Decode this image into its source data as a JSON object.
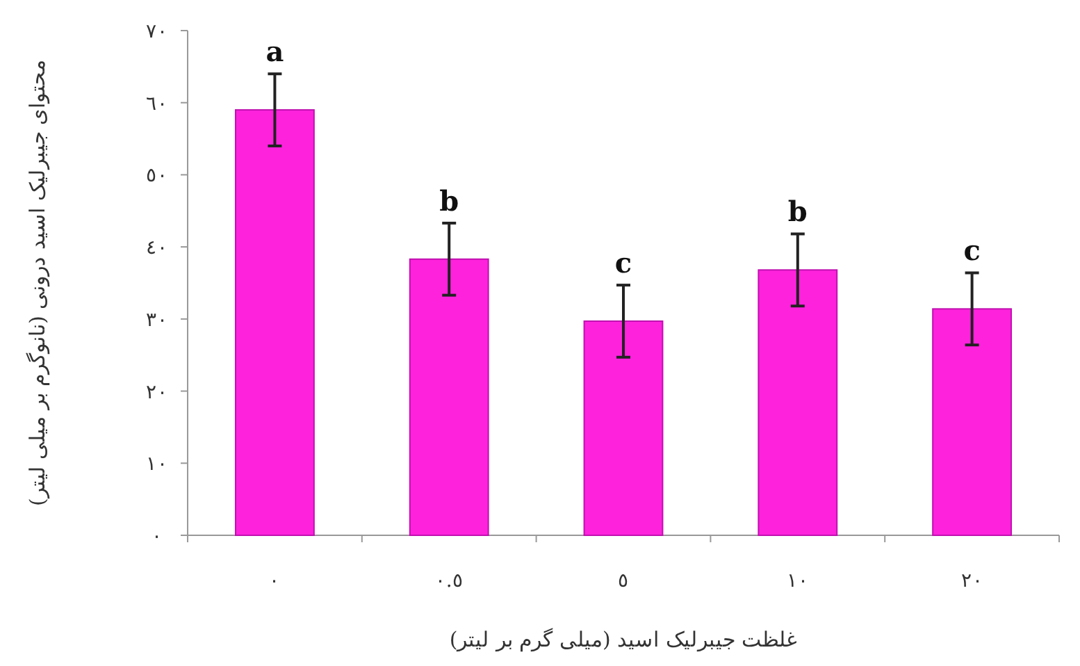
{
  "chart_data": {
    "type": "bar",
    "xlabel": "غلظت جیبرلیک اسید (میلی گرم بر لیتر)",
    "ylabel": "محتوای جیبرلیک اسید درونی (نانوگرم بر میلی لیتر)",
    "categories": [
      "٠",
      "٠.٥",
      "٥",
      "١٠",
      "٢٠"
    ],
    "values": [
      59,
      38.3,
      29.7,
      36.8,
      31.4
    ],
    "errors": [
      5,
      5,
      5,
      5,
      5
    ],
    "color": "#ff22dd",
    "ylim": [
      0,
      70
    ],
    "yticks": [
      {
        "value": 0,
        "label": "٠"
      },
      {
        "value": 10,
        "label": "١٠"
      },
      {
        "value": 20,
        "label": "٢٠"
      },
      {
        "value": 30,
        "label": "٣٠"
      },
      {
        "value": 40,
        "label": "٤٠"
      },
      {
        "value": 50,
        "label": "٥٠"
      },
      {
        "value": 60,
        "label": "٦٠"
      },
      {
        "value": 70,
        "label": "٧٠"
      }
    ],
    "grid": false,
    "annotations": [
      {
        "text": "a",
        "x": "٠",
        "y": 64
      },
      {
        "text": "b",
        "x": "٠.٥",
        "y": 43.3
      },
      {
        "text": "c",
        "x": "٥",
        "y": 34.7
      },
      {
        "text": "b",
        "x": "١٠",
        "y": 41.8
      },
      {
        "text": "c",
        "x": "٢٠",
        "y": 36.4
      }
    ]
  }
}
